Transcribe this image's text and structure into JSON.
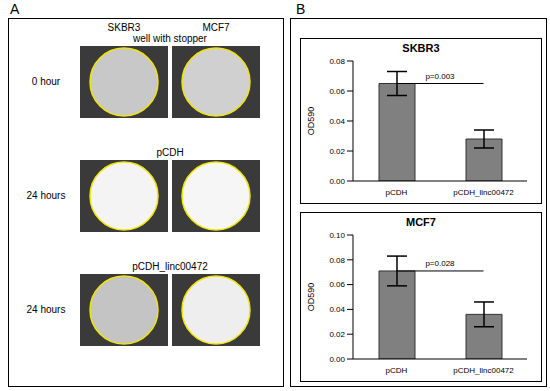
{
  "panel_a": {
    "label": "A",
    "columns": [
      "SKBR3",
      "MCF7"
    ],
    "rows": [
      {
        "header": "well with stopper",
        "time": "0 hour"
      },
      {
        "header": "pCDH",
        "time": "24 hours"
      },
      {
        "header": "pCDH_linc00472",
        "time": "24 hours"
      }
    ]
  },
  "panel_b": {
    "label": "B"
  },
  "chart_data": [
    {
      "type": "bar",
      "title": "SKBR3",
      "y_label": "OD590",
      "categories": [
        "pCDH",
        "pCDH_linc00472"
      ],
      "values": [
        0.065,
        0.028
      ],
      "errors": [
        0.008,
        0.006
      ],
      "color": "#808080",
      "ylim": [
        0,
        0.08
      ],
      "yticks": [
        {
          "value": 0,
          "label": "0.00"
        },
        {
          "value": 0.02,
          "label": "0.02"
        },
        {
          "value": 0.04,
          "label": "0.04"
        },
        {
          "value": 0.06,
          "label": "0.06"
        },
        {
          "value": 0.08,
          "label": "0.08"
        }
      ],
      "annotation": "p=0.003"
    },
    {
      "type": "bar",
      "title": "MCF7",
      "y_label": "OD590",
      "categories": [
        "pCDH",
        "pCDH_linc00472"
      ],
      "values": [
        0.071,
        0.036
      ],
      "errors": [
        0.012,
        0.01
      ],
      "color": "#808080",
      "ylim": [
        0,
        0.1
      ],
      "yticks": [
        {
          "value": 0,
          "label": "0.00"
        },
        {
          "value": 0.02,
          "label": "0.02"
        },
        {
          "value": 0.04,
          "label": "0.04"
        },
        {
          "value": 0.06,
          "label": "0.06"
        },
        {
          "value": 0.08,
          "label": "0.08"
        },
        {
          "value": 0.1,
          "label": "0.10"
        }
      ],
      "annotation": "p=0.028"
    }
  ]
}
